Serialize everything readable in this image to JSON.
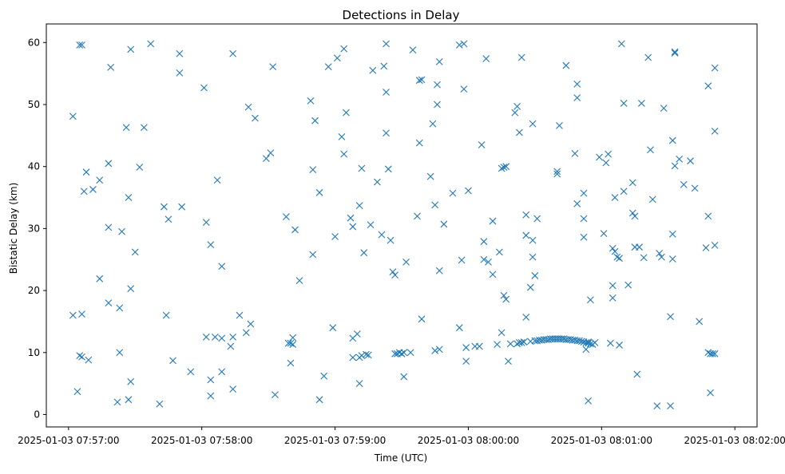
{
  "chart_data": {
    "type": "scatter",
    "title": "Detections in Delay",
    "xlabel": "Time (UTC)",
    "ylabel": "Bistatic Delay (km)",
    "marker": "x",
    "color": "#1f77b4",
    "x_unit": "seconds after 2025-01-03 07:57:00",
    "xlim": [
      -10,
      310
    ],
    "ylim": [
      -2,
      63
    ],
    "x_ticks": [
      {
        "value": 0,
        "label": "2025-01-03 07:57:00"
      },
      {
        "value": 60,
        "label": "2025-01-03 07:58:00"
      },
      {
        "value": 120,
        "label": "2025-01-03 07:59:00"
      },
      {
        "value": 180,
        "label": "2025-01-03 08:00:00"
      },
      {
        "value": 240,
        "label": "2025-01-03 08:01:00"
      },
      {
        "value": 300,
        "label": "2025-01-03 08:02:00"
      }
    ],
    "y_ticks": [
      {
        "value": 0,
        "label": "0"
      },
      {
        "value": 10,
        "label": "10"
      },
      {
        "value": 20,
        "label": "20"
      },
      {
        "value": 30,
        "label": "30"
      },
      {
        "value": 40,
        "label": "40"
      },
      {
        "value": 50,
        "label": "50"
      },
      {
        "value": 60,
        "label": "60"
      }
    ],
    "points": [
      [
        2,
        48.1
      ],
      [
        2,
        16.0
      ],
      [
        4,
        3.7
      ],
      [
        5,
        59.6
      ],
      [
        6,
        59.6
      ],
      [
        5,
        9.5
      ],
      [
        6,
        16.2
      ],
      [
        6,
        9.3
      ],
      [
        7,
        36.0
      ],
      [
        8,
        39.1
      ],
      [
        9,
        8.8
      ],
      [
        11,
        36.3
      ],
      [
        14,
        37.8
      ],
      [
        14,
        21.9
      ],
      [
        18,
        40.5
      ],
      [
        18,
        30.2
      ],
      [
        18,
        18.0
      ],
      [
        19,
        56.0
      ],
      [
        22,
        2.0
      ],
      [
        23,
        17.2
      ],
      [
        23,
        10.0
      ],
      [
        24,
        29.5
      ],
      [
        26,
        46.3
      ],
      [
        27,
        35.0
      ],
      [
        27,
        2.4
      ],
      [
        28,
        58.9
      ],
      [
        28,
        20.3
      ],
      [
        28,
        5.3
      ],
      [
        30,
        26.2
      ],
      [
        32,
        39.9
      ],
      [
        34,
        46.3
      ],
      [
        37,
        59.8
      ],
      [
        41,
        1.7
      ],
      [
        43,
        33.5
      ],
      [
        44,
        16.0
      ],
      [
        45,
        31.5
      ],
      [
        47,
        8.7
      ],
      [
        50,
        58.2
      ],
      [
        50,
        55.1
      ],
      [
        51,
        33.5
      ],
      [
        55,
        6.9
      ],
      [
        61,
        52.7
      ],
      [
        62,
        31.0
      ],
      [
        62,
        12.5
      ],
      [
        64,
        27.4
      ],
      [
        64,
        5.6
      ],
      [
        64,
        3.0
      ],
      [
        66,
        12.5
      ],
      [
        67,
        37.8
      ],
      [
        69,
        12.3
      ],
      [
        69,
        23.9
      ],
      [
        69,
        6.9
      ],
      [
        73,
        11.0
      ],
      [
        74,
        12.5
      ],
      [
        74,
        58.2
      ],
      [
        74,
        4.1
      ],
      [
        77,
        16.0
      ],
      [
        80,
        13.2
      ],
      [
        81,
        49.6
      ],
      [
        82,
        14.6
      ],
      [
        84,
        47.8
      ],
      [
        89,
        41.3
      ],
      [
        91,
        42.2
      ],
      [
        92,
        56.1
      ],
      [
        93,
        3.2
      ],
      [
        98,
        31.9
      ],
      [
        99,
        11.5
      ],
      [
        100,
        11.5
      ],
      [
        100,
        8.3
      ],
      [
        101,
        11.3
      ],
      [
        101,
        12.4
      ],
      [
        102,
        29.8
      ],
      [
        104,
        21.6
      ],
      [
        109,
        50.6
      ],
      [
        110,
        39.5
      ],
      [
        110,
        25.8
      ],
      [
        111,
        47.4
      ],
      [
        113,
        35.8
      ],
      [
        113,
        2.4
      ],
      [
        115,
        6.2
      ],
      [
        117,
        56.1
      ],
      [
        119,
        14.0
      ],
      [
        120,
        28.7
      ],
      [
        121,
        57.5
      ],
      [
        123,
        44.8
      ],
      [
        124,
        59.0
      ],
      [
        124,
        42.0
      ],
      [
        125,
        48.7
      ],
      [
        127,
        31.7
      ],
      [
        128,
        30.3
      ],
      [
        128,
        9.2
      ],
      [
        128,
        12.3
      ],
      [
        130,
        13.0
      ],
      [
        131,
        33.7
      ],
      [
        131,
        5.0
      ],
      [
        131,
        9.2
      ],
      [
        132,
        39.7
      ],
      [
        132,
        9.5
      ],
      [
        133,
        26.1
      ],
      [
        134,
        9.7
      ],
      [
        135,
        9.6
      ],
      [
        136,
        30.6
      ],
      [
        137,
        55.5
      ],
      [
        139,
        37.5
      ],
      [
        141,
        29.0
      ],
      [
        142,
        56.2
      ],
      [
        143,
        52.0
      ],
      [
        143,
        45.4
      ],
      [
        143,
        59.8
      ],
      [
        144,
        39.6
      ],
      [
        145,
        28.1
      ],
      [
        146,
        23.0
      ],
      [
        147,
        22.5
      ],
      [
        147,
        9.8
      ],
      [
        148,
        9.8
      ],
      [
        149,
        10.0
      ],
      [
        150,
        9.8
      ],
      [
        151,
        10.0
      ],
      [
        151,
        6.1
      ],
      [
        152,
        24.6
      ],
      [
        154,
        10.0
      ],
      [
        155,
        58.8
      ],
      [
        157,
        32.0
      ],
      [
        158,
        43.8
      ],
      [
        158,
        53.9
      ],
      [
        159,
        54.0
      ],
      [
        159,
        15.4
      ],
      [
        163,
        38.4
      ],
      [
        164,
        46.9
      ],
      [
        165,
        10.3
      ],
      [
        165,
        33.8
      ],
      [
        166,
        50.0
      ],
      [
        166,
        53.2
      ],
      [
        167,
        56.9
      ],
      [
        167,
        23.2
      ],
      [
        167,
        10.5
      ],
      [
        169,
        30.7
      ],
      [
        173,
        35.7
      ],
      [
        176,
        59.6
      ],
      [
        176,
        14.0
      ],
      [
        177,
        24.9
      ],
      [
        178,
        59.8
      ],
      [
        178,
        52.5
      ],
      [
        179,
        10.8
      ],
      [
        179,
        8.6
      ],
      [
        180,
        36.1
      ],
      [
        183,
        11.0
      ],
      [
        185,
        11.0
      ],
      [
        186,
        43.5
      ],
      [
        187,
        27.9
      ],
      [
        187,
        25.0
      ],
      [
        188,
        57.4
      ],
      [
        189,
        24.6
      ],
      [
        191,
        31.2
      ],
      [
        191,
        22.6
      ],
      [
        193,
        11.3
      ],
      [
        194,
        26.2
      ],
      [
        195,
        13.2
      ],
      [
        195,
        39.7
      ],
      [
        196,
        19.2
      ],
      [
        196,
        39.9
      ],
      [
        197,
        40.0
      ],
      [
        197,
        18.6
      ],
      [
        198,
        8.6
      ],
      [
        199,
        11.4
      ],
      [
        201,
        48.7
      ],
      [
        202,
        11.4
      ],
      [
        202,
        49.7
      ],
      [
        203,
        45.5
      ],
      [
        203,
        11.6
      ],
      [
        204,
        57.6
      ],
      [
        204,
        11.6
      ],
      [
        205,
        11.7
      ],
      [
        206,
        28.9
      ],
      [
        206,
        32.2
      ],
      [
        206,
        15.7
      ],
      [
        208,
        11.8
      ],
      [
        208,
        20.5
      ],
      [
        209,
        46.9
      ],
      [
        209,
        28.1
      ],
      [
        209,
        25.4
      ],
      [
        210,
        11.9
      ],
      [
        210,
        22.4
      ],
      [
        211,
        31.6
      ],
      [
        211,
        11.9
      ],
      [
        212,
        12.0
      ],
      [
        213,
        12.0
      ],
      [
        214,
        12.1
      ],
      [
        215,
        12.1
      ],
      [
        216,
        12.1
      ],
      [
        217,
        12.2
      ],
      [
        218,
        12.2
      ],
      [
        219,
        12.2
      ],
      [
        220,
        12.2
      ],
      [
        221,
        12.2
      ],
      [
        222,
        12.2
      ],
      [
        223,
        12.2
      ],
      [
        224,
        12.1
      ],
      [
        225,
        12.1
      ],
      [
        226,
        12.1
      ],
      [
        227,
        12.0
      ],
      [
        228,
        12.0
      ],
      [
        229,
        11.9
      ],
      [
        230,
        11.9
      ],
      [
        231,
        11.8
      ],
      [
        232,
        11.7
      ],
      [
        233,
        11.6
      ],
      [
        234,
        11.5
      ],
      [
        235,
        11.4
      ],
      [
        236,
        11.3
      ],
      [
        220,
        38.8
      ],
      [
        220,
        39.2
      ],
      [
        221,
        46.6
      ],
      [
        224,
        56.3
      ],
      [
        228,
        42.1
      ],
      [
        229,
        53.3
      ],
      [
        229,
        51.1
      ],
      [
        229,
        34.0
      ],
      [
        232,
        31.6
      ],
      [
        232,
        35.7
      ],
      [
        232,
        28.6
      ],
      [
        233,
        10.5
      ],
      [
        234,
        11.7
      ],
      [
        234,
        2.2
      ],
      [
        235,
        18.5
      ],
      [
        237,
        11.6
      ],
      [
        239,
        41.5
      ],
      [
        241,
        29.2
      ],
      [
        242,
        40.6
      ],
      [
        243,
        42.0
      ],
      [
        244,
        11.5
      ],
      [
        245,
        26.8
      ],
      [
        245,
        20.8
      ],
      [
        245,
        18.8
      ],
      [
        246,
        26.3
      ],
      [
        246,
        35.0
      ],
      [
        247,
        25.4
      ],
      [
        248,
        25.2
      ],
      [
        248,
        11.2
      ],
      [
        249,
        59.8
      ],
      [
        250,
        50.2
      ],
      [
        250,
        36.0
      ],
      [
        252,
        20.9
      ],
      [
        254,
        37.4
      ],
      [
        254,
        32.5
      ],
      [
        255,
        32.0
      ],
      [
        255,
        27.0
      ],
      [
        256,
        6.5
      ],
      [
        257,
        27.0
      ],
      [
        258,
        50.2
      ],
      [
        259,
        25.3
      ],
      [
        261,
        57.6
      ],
      [
        262,
        42.7
      ],
      [
        263,
        34.7
      ],
      [
        265,
        1.4
      ],
      [
        266,
        26.0
      ],
      [
        267,
        25.4
      ],
      [
        268,
        49.4
      ],
      [
        271,
        15.8
      ],
      [
        271,
        1.4
      ],
      [
        272,
        44.2
      ],
      [
        272,
        29.1
      ],
      [
        272,
        25.1
      ],
      [
        273,
        58.5
      ],
      [
        273,
        58.3
      ],
      [
        273,
        40.1
      ],
      [
        275,
        41.2
      ],
      [
        277,
        37.1
      ],
      [
        280,
        40.9
      ],
      [
        282,
        36.5
      ],
      [
        284,
        15.0
      ],
      [
        287,
        26.9
      ],
      [
        288,
        10.0
      ],
      [
        288,
        32.0
      ],
      [
        288,
        53.0
      ],
      [
        289,
        9.8
      ],
      [
        289,
        3.5
      ],
      [
        290,
        9.8
      ],
      [
        291,
        9.8
      ],
      [
        291,
        45.7
      ],
      [
        291,
        55.9
      ],
      [
        291,
        27.3
      ]
    ]
  }
}
